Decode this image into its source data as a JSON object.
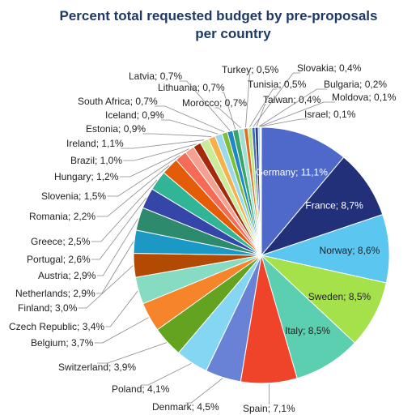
{
  "chart_data": {
    "type": "pie",
    "title_lines": [
      "Percent total requested budget by pre-proposals",
      "per country"
    ],
    "legend": "none",
    "slices": [
      {
        "label": "Germany",
        "value": 11.1,
        "display": "11,1%",
        "color": "#4e69c9",
        "label_inside": true,
        "light_text": true
      },
      {
        "label": "France",
        "value": 8.7,
        "display": "8,7%",
        "color": "#22307a",
        "label_inside": true,
        "light_text": true
      },
      {
        "label": "Norway",
        "value": 8.6,
        "display": "8,6%",
        "color": "#5bc6f0",
        "label_inside": true,
        "light_text": false
      },
      {
        "label": "Sweden",
        "value": 8.5,
        "display": "8,5%",
        "color": "#a4e14a",
        "label_inside": true,
        "light_text": false
      },
      {
        "label": "Italy",
        "value": 8.5,
        "display": "8,5%",
        "color": "#5ccfb0",
        "label_inside": true,
        "light_text": false
      },
      {
        "label": "Spain",
        "value": 7.1,
        "display": "7,1%",
        "color": "#f0442a",
        "label_inside": false
      },
      {
        "label": "Denmark",
        "value": 4.5,
        "display": "4,5%",
        "color": "#6a82d6",
        "label_inside": false
      },
      {
        "label": "Poland",
        "value": 4.1,
        "display": "4,1%",
        "color": "#85d6f2",
        "label_inside": false
      },
      {
        "label": "Switzerland",
        "value": 3.9,
        "display": "3,9%",
        "color": "#63a320",
        "label_inside": false
      },
      {
        "label": "Belgium",
        "value": 3.7,
        "display": "3,7%",
        "color": "#f5842a",
        "label_inside": false
      },
      {
        "label": "Czech Republic",
        "value": 3.4,
        "display": "3,4%",
        "color": "#86dcc2",
        "label_inside": false
      },
      {
        "label": "Finland",
        "value": 3.0,
        "display": "3,0%",
        "color": "#b34a04",
        "label_inside": false
      },
      {
        "label": "Netherlands",
        "value": 2.9,
        "display": "2,9%",
        "color": "#1b98c4",
        "label_inside": false
      },
      {
        "label": "Austria",
        "value": 2.9,
        "display": "2,9%",
        "color": "#2e8a6d",
        "label_inside": false
      },
      {
        "label": "Portugal",
        "value": 2.6,
        "display": "2,6%",
        "color": "#3545a8",
        "label_inside": false
      },
      {
        "label": "Greece",
        "value": 2.5,
        "display": "2,5%",
        "color": "#31b596",
        "label_inside": false
      },
      {
        "label": "Romania",
        "value": 2.2,
        "display": "2,2%",
        "color": "#e55c08",
        "label_inside": false
      },
      {
        "label": "Slovenia",
        "value": 1.5,
        "display": "1,5%",
        "color": "#f56b55",
        "label_inside": false
      },
      {
        "label": "Hungary",
        "value": 1.2,
        "display": "1,2%",
        "color": "#f5a090",
        "label_inside": false
      },
      {
        "label": "Brazil",
        "value": 1.0,
        "display": "1,0%",
        "color": "#a52a0a",
        "label_inside": false
      },
      {
        "label": "Ireland",
        "value": 1.1,
        "display": "1,1%",
        "color": "#c8ec9a",
        "label_inside": false
      },
      {
        "label": "Estonia",
        "value": 0.9,
        "display": "0,9%",
        "color": "#f7b04a",
        "label_inside": false
      },
      {
        "label": "Iceland",
        "value": 0.9,
        "display": "0,9%",
        "color": "#9ad8ee",
        "label_inside": false
      },
      {
        "label": "South Africa",
        "value": 0.7,
        "display": "0,7%",
        "color": "#7fbf3a",
        "label_inside": false
      },
      {
        "label": "Latvia",
        "value": 0.7,
        "display": "0,7%",
        "color": "#1e88c8",
        "label_inside": false
      },
      {
        "label": "Lithuania",
        "value": 0.7,
        "display": "0,7%",
        "color": "#3aa56a",
        "label_inside": false
      },
      {
        "label": "Morocco",
        "value": 0.7,
        "display": "0,7%",
        "color": "#a0e0d0",
        "label_inside": false
      },
      {
        "label": "Turkey",
        "value": 0.5,
        "display": "0,5%",
        "color": "#e06e1e",
        "label_inside": false
      },
      {
        "label": "Tunisia",
        "value": 0.5,
        "display": "0,5%",
        "color": "#b8e680",
        "label_inside": false
      },
      {
        "label": "Slovakia",
        "value": 0.4,
        "display": "0,4%",
        "color": "#3f66c0",
        "label_inside": false
      },
      {
        "label": "Taiwan",
        "value": 0.4,
        "display": "0,4%",
        "color": "#2a3f8a",
        "label_inside": false
      },
      {
        "label": "Bulgaria",
        "value": 0.2,
        "display": "0,2%",
        "color": "#6fb2e2",
        "label_inside": false
      },
      {
        "label": "Moldova",
        "value": 0.1,
        "display": "0,1%",
        "color": "#7dcf4a",
        "label_inside": false
      },
      {
        "label": "Israel",
        "value": 0.1,
        "display": "0,1%",
        "color": "#2f7fd0",
        "label_inside": false
      }
    ]
  }
}
